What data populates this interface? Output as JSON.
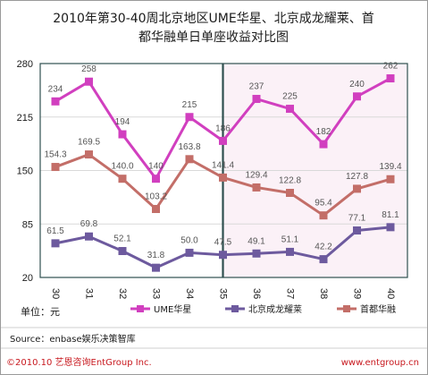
{
  "chart_data": {
    "type": "line",
    "title_lines": [
      "2010年第30-40周北京地区UME华星、北京成龙耀莱、首",
      "都华融单日单座收益对比图"
    ],
    "categories": [
      "30",
      "31",
      "32",
      "33",
      "34",
      "35",
      "36",
      "37",
      "38",
      "39",
      "40"
    ],
    "series": [
      {
        "name": "UME华星",
        "color": "#d13fbf",
        "values": [
          234,
          258,
          194,
          140,
          215,
          186,
          237,
          225,
          182,
          240,
          262
        ],
        "labels": [
          "234",
          "258",
          "194",
          "140",
          "215",
          "186",
          "237",
          "225",
          "182",
          "240",
          "262"
        ]
      },
      {
        "name": "北京成龙耀莱",
        "color": "#6d5a9e",
        "values": [
          61.5,
          69.8,
          52.1,
          31.8,
          50.0,
          47.5,
          49.1,
          51.1,
          42.2,
          77.1,
          81.1
        ],
        "labels": [
          "61.5",
          "69.8",
          "52.1",
          "31.8",
          "50.0",
          "47.5",
          "49.1",
          "51.1",
          "42.2",
          "77.1",
          "81.1"
        ]
      },
      {
        "name": "首都华融",
        "color": "#c36e68",
        "values": [
          154.3,
          169.5,
          140.0,
          103.2,
          163.8,
          141.4,
          129.4,
          122.8,
          95.4,
          127.8,
          139.4
        ],
        "labels": [
          "154.3",
          "169.5",
          "140.0",
          "103.2",
          "163.8",
          "141.4",
          "129.4",
          "122.8",
          "95.4",
          "127.8",
          "139.4"
        ]
      }
    ],
    "y_ticks": [
      "280",
      "215",
      "150",
      "85",
      "20"
    ],
    "ylim": [
      20,
      280
    ],
    "grid": "horizontal",
    "legend_position": "bottom"
  },
  "unit_label": "单位：元",
  "source": "Source：enbase娱乐决策智库",
  "copyright": "©2010.10  艺恩咨询EntGroup Inc.",
  "website": "www.entgroup.cn",
  "colors": {
    "accent": "#c8181e",
    "border": "#2f4f4f",
    "highlight_fill": "#fbf1f7"
  }
}
